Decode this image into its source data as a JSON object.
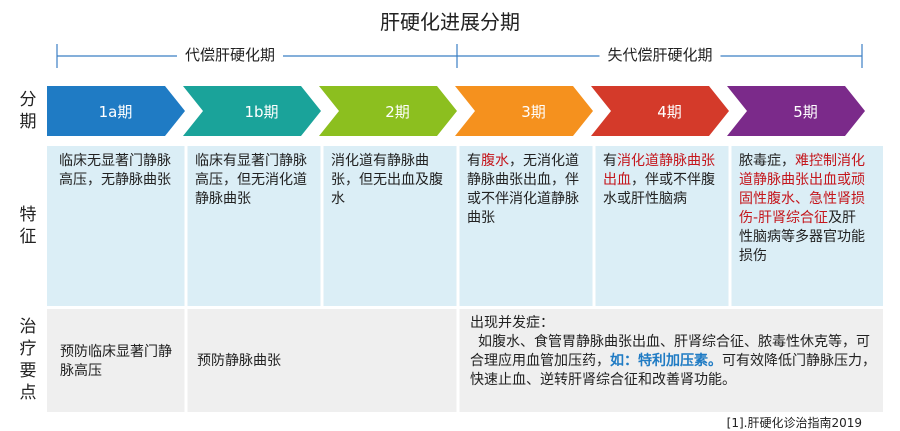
{
  "title": "肝硬化进展分期",
  "phases": {
    "compensated": "代偿肝硬化期",
    "decompensated": "失代偿肝硬化期"
  },
  "row_labels": {
    "stage": "分期",
    "features": "特征",
    "treatment": "治疗要点"
  },
  "stages": [
    {
      "label": "1a期",
      "color": "#1f7bc4"
    },
    {
      "label": "1b期",
      "color": "#1aa39a"
    },
    {
      "label": "2期",
      "color": "#8cbf1f"
    },
    {
      "label": "3期",
      "color": "#f5911e"
    },
    {
      "label": "4期",
      "color": "#d43a2a"
    },
    {
      "label": "5期",
      "color": "#7b2a8a"
    }
  ],
  "features": [
    [
      {
        "text": "临床无显著门静脉高压，无静脉曲张"
      }
    ],
    [
      {
        "text": "临床有显著门静脉高压，但无消化道静脉曲张"
      }
    ],
    [
      {
        "text": "消化道有静脉曲张，但无出血及腹水"
      }
    ],
    [
      {
        "text": "有"
      },
      {
        "text": "腹水",
        "highlight": true
      },
      {
        "text": "，无消化道静脉曲张出血，伴或不伴消化道静脉曲张"
      }
    ],
    [
      {
        "text": "有"
      },
      {
        "text": "消化道静脉曲张出血",
        "highlight": true
      },
      {
        "text": "，伴或不伴腹水或肝性脑病"
      }
    ],
    [
      {
        "text": "脓毒症，"
      },
      {
        "text": "难控制消化道静脉曲张出血或顽固性腹水、急性肾损伤-肝肾综合征",
        "highlight": true
      },
      {
        "text": "及肝性脑病等多器官功能损伤"
      }
    ]
  ],
  "treatment": {
    "cells": [
      "预防临床显著门静脉高压",
      "预防静脉曲张"
    ],
    "complication_title": "出现并发症：",
    "complication_text": [
      {
        "text": "如腹水、食管胃静脉曲张出血、肝肾综合征、脓毒性休克等，可合理应用血管加压药，"
      },
      {
        "text": "如：特利加压素。",
        "emphasis": true
      },
      {
        "text": "可有效降低门静脉压力，快速止血、逆转肝肾综合征和改善肾功能。"
      }
    ]
  },
  "footnote": "[1].肝硬化诊治指南2019"
}
